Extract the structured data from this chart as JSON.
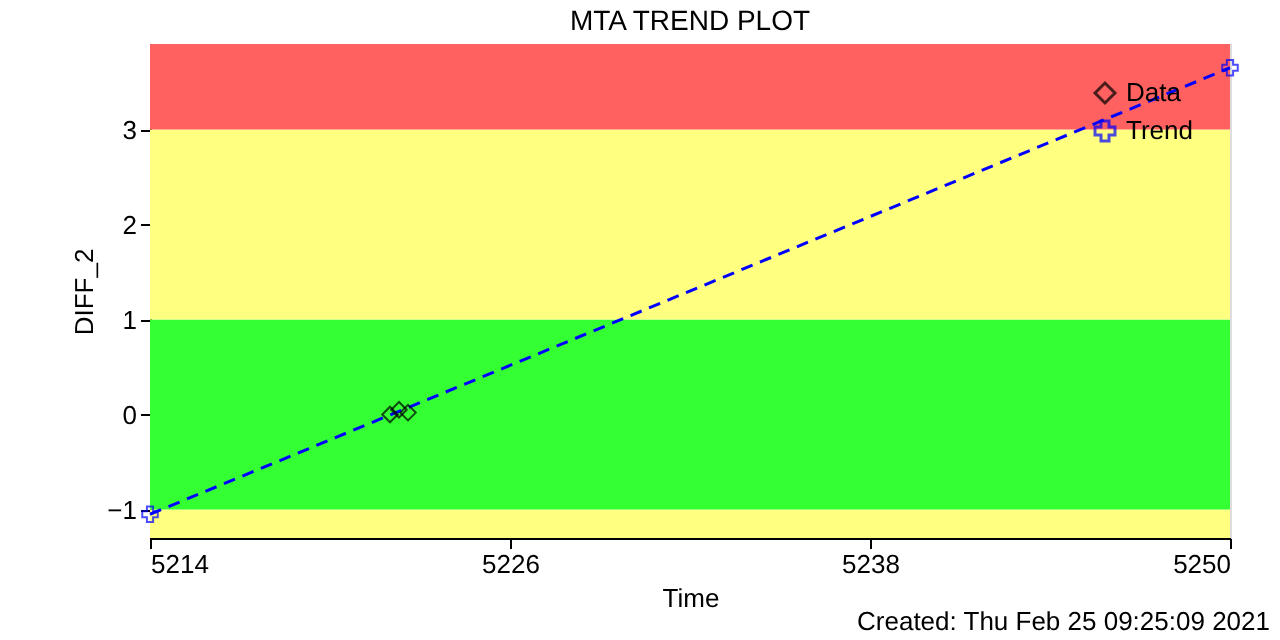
{
  "chart_data": {
    "type": "scatter",
    "title": "MTA TREND PLOT",
    "xlabel": "Time",
    "ylabel": "DIFF_2",
    "annotations": [
      "Created: Thu Feb 25 09:25:09 2021"
    ],
    "xlim": [
      5214,
      5250
    ],
    "xticks": [
      5214,
      5226,
      5238,
      5250
    ],
    "ylim": [
      -1.3,
      3.9
    ],
    "yticks": [
      -1,
      0,
      1,
      2,
      3
    ],
    "bands": [
      {
        "axis": "y",
        "from": -1.3,
        "to": -1,
        "color": "#ffff80"
      },
      {
        "axis": "y",
        "from": -1,
        "to": 1,
        "color": "#33ff33"
      },
      {
        "axis": "y",
        "from": 1,
        "to": 3,
        "color": "#ffff80"
      },
      {
        "axis": "y",
        "from": 3,
        "to": 3.9,
        "color": "#ff6060"
      }
    ],
    "series": [
      {
        "name": "Data",
        "marker": "diamond",
        "color": "#000000",
        "x": [
          5222.0,
          5222.3,
          5222.6
        ],
        "values": [
          0.0,
          0.05,
          0.02
        ]
      },
      {
        "name": "Trend",
        "type": "line",
        "marker": "cross",
        "line_style": "dashed",
        "color": "#0000ff",
        "x": [
          5214,
          5250
        ],
        "values": [
          -1.05,
          3.65
        ]
      }
    ],
    "legend": "top right",
    "grid": false
  }
}
